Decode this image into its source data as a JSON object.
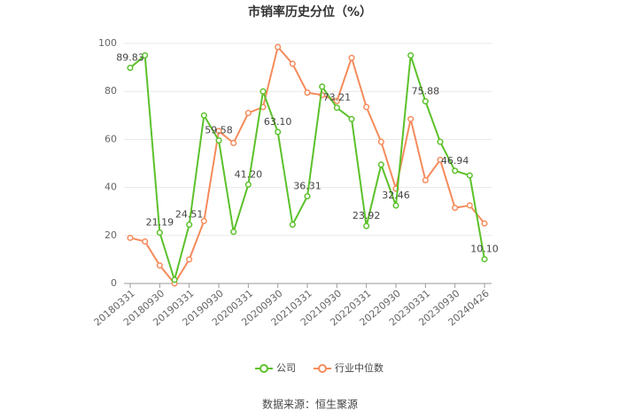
{
  "chart_data": {
    "type": "line",
    "title": "市销率历史分位（%）",
    "categories": [
      "20180331",
      null,
      "20180930",
      null,
      "20190331",
      null,
      "20190930",
      null,
      "20200331",
      null,
      "20200930",
      null,
      "20210331",
      null,
      "20210930",
      null,
      "20220331",
      null,
      "20220930",
      null,
      "20230331",
      null,
      "20230930",
      null,
      "20240426"
    ],
    "series": [
      {
        "name": "公司",
        "color": "#5cc12b",
        "values": [
          89.83,
          95,
          21.19,
          1.5,
          24.51,
          70,
          59.58,
          21.5,
          41.2,
          80,
          63.1,
          24.5,
          36.31,
          82,
          73.21,
          68.5,
          23.92,
          49.5,
          32.46,
          95,
          75.88,
          59,
          46.94,
          45,
          10.1
        ],
        "value_labels": [
          "89.83",
          null,
          "21.19",
          null,
          "24.51",
          null,
          "59.58",
          null,
          "41.20",
          null,
          "63.10",
          null,
          "36.31",
          null,
          "73.21",
          null,
          "23.92",
          null,
          "32.46",
          null,
          "75.88",
          null,
          "46.94",
          null,
          "10.10"
        ]
      },
      {
        "name": "行业中位数",
        "color": "#f58b5c",
        "values": [
          19,
          17.5,
          7.5,
          0,
          10,
          26,
          63.5,
          58.5,
          71,
          73.5,
          98.5,
          91.5,
          79.5,
          78.5,
          76,
          94,
          73.5,
          59,
          39.5,
          68.5,
          43,
          51.5,
          31.5,
          32.5,
          25
        ]
      }
    ],
    "ylim": [
      0,
      100
    ],
    "yticks": [
      0,
      20,
      40,
      60,
      80,
      100
    ],
    "grid": true,
    "source": "数据来源：恒生聚源"
  }
}
